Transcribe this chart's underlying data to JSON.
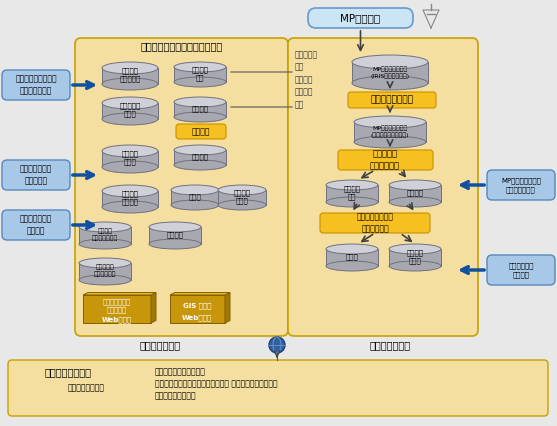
{
  "bg_color": "#e8e8e8",
  "main_box_color": "#f5dfa0",
  "main_box_edge": "#c8a000",
  "client_box_color": "#f5dfa0",
  "client_box_edge": "#c8a000",
  "mp_radar_box_color": "#cce5f5",
  "mp_radar_box_edge": "#6699cc",
  "blue_label_color": "#a8c8e8",
  "blue_label_edge": "#5588bb",
  "yellow_box_color": "#f5c020",
  "yellow_box_edge": "#c89000",
  "gold_front": "#c8960a",
  "gold_top": "#e8b820",
  "gold_right": "#a07808",
  "cyl_body": "#a8a8b0",
  "cyl_top": "#d0d0d8",
  "cyl_edge": "#707080",
  "arrow_blue": "#1050a0",
  "arrow_dark": "#404040",
  "main_title": "土砂災害発生予測支援システム",
  "mp_radar_label": "MPレーダー",
  "rainfall_section_label": "降水量推定\n及び\n表層崩壊\n発生予測\n部分",
  "format_label": "フォーマット変換",
  "rainfall_algo_label": "降水量推定\nアルゴリズム",
  "surface_algo_label": "表層崩壊発生予測\nアルゴリズム",
  "rain_calc_label": "雨量積算",
  "intranet_label": "イントラネット",
  "internet_label": "インターネット",
  "client_title": "クライアント部分",
  "client_line1": "・地すべり地形分布表示",
  "client_line2": "・降雨情報・表層崩壊発生危険度の 現状／オフライン表示",
  "client_line3": "・土砂災害情報表示",
  "overlay_label": "・重ね合わせ表示",
  "left_labels": [
    "地すべり地形分布図\nデーターベース",
    "土砂災害危険性\nの判定手法",
    "土砂の流下堆積\n域の推定"
  ],
  "right_labels": [
    "MPレーダーによる\n降水量推定手法",
    "表層崩壊発生\n予測手法"
  ],
  "cyl_labels_left_col1": [
    "地すべり\n地形分布図",
    "歴住土砂災\n害情報",
    "地すべり\n危険度",
    "地すべり\n到達範囲"
  ],
  "cyl_labels_left_col2": [
    "鉛直積算\n雨量",
    "降雨強度",
    "積算雨量",
    "飽和度",
    "表層崩壊\n危険域"
  ],
  "cyl_labels_shadow": "地すべり\n地形分布陰影図",
  "cyl_labels_num": "数値地図",
  "cyl_labels_rain_img": "降雨・表層\n崩壊関連画像",
  "cyl_labels_right_mp": "MPレーダーデータ\n(IRISフォーマット)",
  "cyl_labels_right_conv": "MPレーダーデータ\n(フォーマット変換済)",
  "cyl_labels_right_vert": "鉛直積算\n雨量",
  "cyl_labels_right_rain": "降雨強度",
  "cyl_labels_right_sat": "飽和度",
  "cyl_labels_right_surf": "表層崩壊\n危険域",
  "web_server1_line1": "２次元画像高速",
  "web_server1_line2": "閲覧ソフト",
  "web_server1_line3": "Webサーバ",
  "web_server2_line1": "GIS サーバ",
  "web_server2_line2": "Webサーバ"
}
